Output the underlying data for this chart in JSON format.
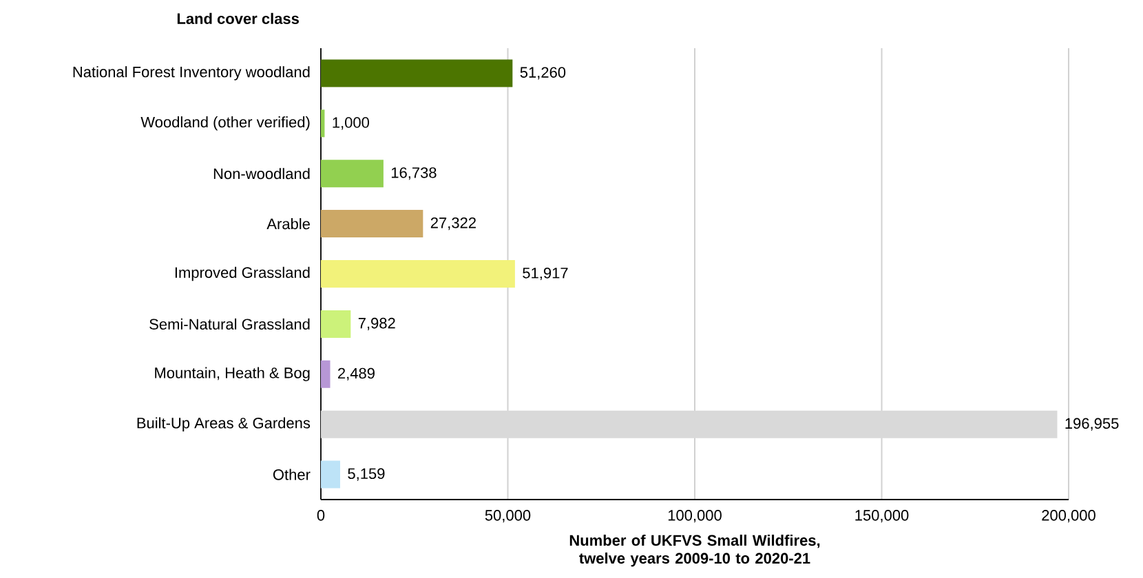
{
  "chart_data": {
    "type": "bar",
    "orientation": "horizontal",
    "ylabel": "Land cover class",
    "xlabel": "Number of UKFVS Small Wildfires, twelve years 2009-10 to 2020-21",
    "categories": [
      "National Forest Inventory woodland",
      "Woodland (other verified)",
      "Non-woodland",
      "Arable",
      "Improved Grassland",
      "Semi-Natural Grassland",
      "Mountain, Heath & Bog",
      "Built-Up Areas & Gardens",
      "Other"
    ],
    "values": [
      51260,
      1000,
      16738,
      27322,
      51917,
      7982,
      2489,
      196955,
      5159
    ],
    "value_labels": [
      "51,260",
      "1,000",
      "16,738",
      "27,322",
      "51,917",
      "7,982",
      "2,489",
      "196,955",
      "5,159"
    ],
    "colors": [
      "#4c7500",
      "#92d050",
      "#92d050",
      "#cca866",
      "#f2f27a",
      "#ccf27a",
      "#b797d6",
      "#d9d9d9",
      "#bde3f7"
    ],
    "xlim": [
      0,
      200000
    ],
    "xticks": [
      0,
      {
        "value": 50000,
        "label": "50,000"
      },
      {
        "value": 100000,
        "label": "100,000"
      },
      {
        "value": 150000,
        "label": "150,000"
      },
      {
        "value": 200000,
        "label": "200,000"
      }
    ],
    "grid": "x"
  }
}
